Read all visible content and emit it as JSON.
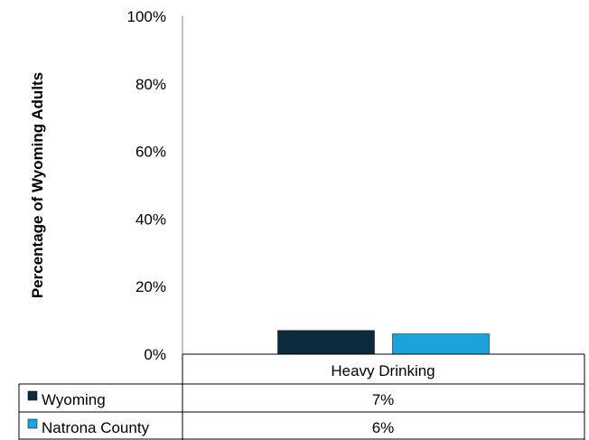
{
  "chart_data": {
    "type": "bar",
    "title": "",
    "xlabel": "",
    "ylabel": "Percentage of Wyoming Adults",
    "ylim": [
      0,
      100
    ],
    "yticks": [
      0,
      20,
      40,
      60,
      80,
      100
    ],
    "ytick_labels": [
      "0%",
      "20%",
      "40%",
      "60%",
      "80%",
      "100%"
    ],
    "categories": [
      "Heavy Drinking"
    ],
    "grid": false,
    "legend": "data-table",
    "series": [
      {
        "name": "Wyoming",
        "values": [
          7
        ],
        "value_labels": [
          "7%"
        ],
        "color": "#0b2a3b"
      },
      {
        "name": "Natrona County",
        "values": [
          6
        ],
        "value_labels": [
          "6%"
        ],
        "color": "#1ba3de"
      }
    ]
  }
}
